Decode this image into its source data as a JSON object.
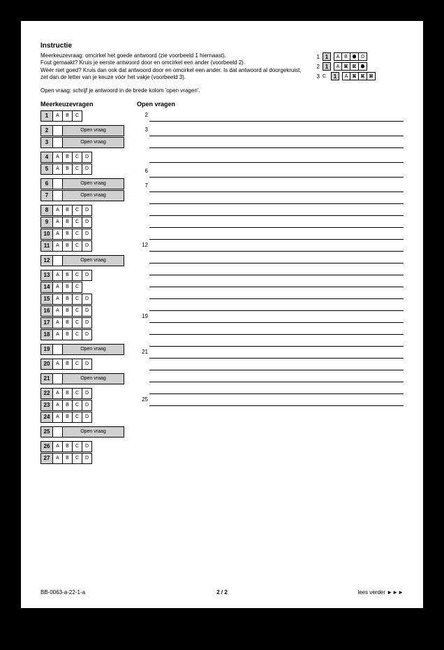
{
  "title": "Instructie",
  "instructions": [
    "Meerkeuzevraag: omcirkel het goede antwoord (zie voorbeeld 1 hiernaast).",
    "Fout gemaakt? Kruis je eerste antwoord door en omcirkel een ander (voorbeeld 2).",
    "Wéér niet goed? Kruis dan ook dat antwoord door en omcirkel een ander. Is dat antwoord al doorgekruist, zet dan de letter van je keuze vóór het vakje (voorbeeld 3)."
  ],
  "final_line": "Open vraag: schrijf je antwoord in de brede kolom 'open vragen'.",
  "col1_title": "Meerkeuzevragen",
  "col2_title": "Open vragen",
  "letters": [
    "A",
    "B",
    "C",
    "D"
  ],
  "open_label": "Open vraag",
  "examples": [
    {
      "num": "1",
      "n": "1",
      "letters": [
        "A",
        "B",
        "C",
        "D"
      ],
      "marks": [
        "",
        "",
        "m",
        ""
      ]
    },
    {
      "num": "2",
      "n": "1",
      "letters": [
        "A",
        "B",
        "C",
        "D"
      ],
      "marks": [
        "",
        "x",
        "x",
        "m"
      ]
    },
    {
      "num": "3",
      "n": "1",
      "letters": [
        "A",
        "B",
        "C",
        "D"
      ],
      "marks": [
        "",
        "x",
        "x",
        "x"
      ],
      "prefix": "C"
    }
  ],
  "rows": [
    {
      "n": "1",
      "type": "mc",
      "letters": [
        "A",
        "B",
        "C"
      ]
    },
    {
      "n": "2",
      "type": "open"
    },
    {
      "n": "3",
      "type": "open"
    },
    {
      "n": "4",
      "type": "mc",
      "letters": [
        "A",
        "B",
        "C",
        "D"
      ]
    },
    {
      "n": "5",
      "type": "mc",
      "letters": [
        "A",
        "B",
        "C",
        "D"
      ]
    },
    {
      "n": "6",
      "type": "open"
    },
    {
      "n": "7",
      "type": "open"
    },
    {
      "n": "8",
      "type": "mc",
      "letters": [
        "A",
        "B",
        "C",
        "D"
      ]
    },
    {
      "n": "9",
      "type": "mc",
      "letters": [
        "A",
        "B",
        "C",
        "D"
      ]
    },
    {
      "n": "10",
      "type": "mc",
      "letters": [
        "A",
        "B",
        "C",
        "D"
      ]
    },
    {
      "n": "11",
      "type": "mc",
      "letters": [
        "A",
        "B",
        "C",
        "D"
      ]
    },
    {
      "n": "12",
      "type": "open"
    },
    {
      "n": "13",
      "type": "mc",
      "letters": [
        "A",
        "B",
        "C",
        "D"
      ]
    },
    {
      "n": "14",
      "type": "mc",
      "letters": [
        "A",
        "B",
        "C"
      ]
    },
    {
      "n": "15",
      "type": "mc",
      "letters": [
        "A",
        "B",
        "C",
        "D"
      ]
    },
    {
      "n": "16",
      "type": "mc",
      "letters": [
        "A",
        "B",
        "C",
        "D"
      ]
    },
    {
      "n": "17",
      "type": "mc",
      "letters": [
        "A",
        "B",
        "C",
        "D"
      ]
    },
    {
      "n": "18",
      "type": "mc",
      "letters": [
        "A",
        "B",
        "C",
        "D"
      ]
    },
    {
      "n": "19",
      "type": "open"
    },
    {
      "n": "20",
      "type": "mc",
      "letters": [
        "A",
        "B",
        "C",
        "D"
      ]
    },
    {
      "n": "21",
      "type": "open"
    },
    {
      "n": "22",
      "type": "mc",
      "letters": [
        "A",
        "B",
        "C",
        "D"
      ]
    },
    {
      "n": "23",
      "type": "mc",
      "letters": [
        "A",
        "B",
        "C",
        "D"
      ]
    },
    {
      "n": "24",
      "type": "mc",
      "letters": [
        "A",
        "B",
        "C",
        "D"
      ]
    },
    {
      "n": "25",
      "type": "open"
    },
    {
      "n": "26",
      "type": "mc",
      "letters": [
        "A",
        "B",
        "C",
        "D"
      ]
    },
    {
      "n": "27",
      "type": "mc",
      "letters": [
        "A",
        "B",
        "C",
        "D"
      ]
    }
  ],
  "open_sections": [
    {
      "label": "2",
      "lines": 1
    },
    {
      "gap": true
    },
    {
      "label": "3",
      "lines": 2
    },
    {
      "gap": true
    },
    {
      "label": "",
      "lines": 1
    },
    {
      "gap": true
    },
    {
      "label": "6",
      "lines": 1
    },
    {
      "gap": true
    },
    {
      "label": "7",
      "lines": 1
    },
    {
      "label": "",
      "lines": 2
    },
    {
      "label": "",
      "lines": 1
    },
    {
      "label": "",
      "lines": 1
    },
    {
      "label": "12",
      "lines": 1
    },
    {
      "label": "",
      "lines": 1
    },
    {
      "label": "",
      "lines": 1
    },
    {
      "label": "",
      "lines": 1
    },
    {
      "label": "",
      "lines": 1
    },
    {
      "label": "",
      "lines": 1
    },
    {
      "label": "19",
      "lines": 1
    },
    {
      "label": "",
      "lines": 1
    },
    {
      "label": "",
      "lines": 1
    },
    {
      "label": "21",
      "lines": 1
    },
    {
      "label": "",
      "lines": 1
    },
    {
      "label": "",
      "lines": 1
    },
    {
      "label": "",
      "lines": 1
    },
    {
      "label": "25",
      "lines": 1
    }
  ],
  "footer_left": "BB-0063-a-22-1-a",
  "footer_center": "2 / 2",
  "footer_right": "lees verder ►►►"
}
